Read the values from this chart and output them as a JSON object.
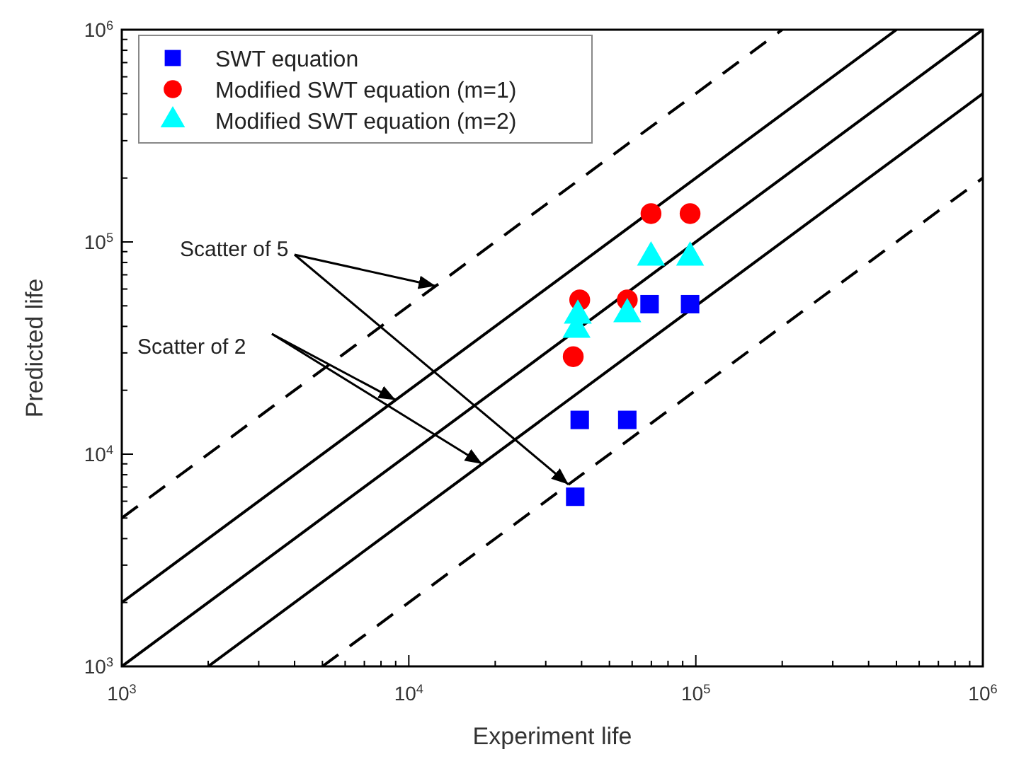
{
  "chart_data": {
    "type": "scatter",
    "xlabel": "Experiment life",
    "ylabel": "Predicted life",
    "log": "xy",
    "grid": false,
    "legend": "top left",
    "xlim": [
      1000,
      1000000
    ],
    "ylim": [
      1000,
      1000000
    ],
    "xticks": [
      {
        "value": 1000,
        "label": "10$^{3}$"
      },
      {
        "value": 2000,
        "label": null
      },
      {
        "value": 3000,
        "label": null
      },
      {
        "value": 4000,
        "label": null
      },
      {
        "value": 5000,
        "label": null
      },
      {
        "value": 6000,
        "label": null
      },
      {
        "value": 7000,
        "label": null
      },
      {
        "value": 8000,
        "label": null
      },
      {
        "value": 9000,
        "label": null
      },
      {
        "value": 10000,
        "label": "10$^{4}$"
      },
      {
        "value": 20000,
        "label": null
      },
      {
        "value": 30000,
        "label": null
      },
      {
        "value": 40000,
        "label": null
      },
      {
        "value": 50000,
        "label": null
      },
      {
        "value": 60000,
        "label": null
      },
      {
        "value": 70000,
        "label": null
      },
      {
        "value": 80000,
        "label": null
      },
      {
        "value": 90000,
        "label": null
      },
      {
        "value": 100000,
        "label": "10$^{5}$"
      },
      {
        "value": 200000,
        "label": null
      },
      {
        "value": 300000,
        "label": null
      },
      {
        "value": 400000,
        "label": null
      },
      {
        "value": 500000,
        "label": null
      },
      {
        "value": 600000,
        "label": null
      },
      {
        "value": 700000,
        "label": null
      },
      {
        "value": 800000,
        "label": null
      },
      {
        "value": 900000,
        "label": null
      },
      {
        "value": 1000000,
        "label": "10$^{6}$"
      }
    ],
    "yticks": [
      {
        "value": 1000,
        "label": "10$^{3}$"
      },
      {
        "value": 2000,
        "label": null
      },
      {
        "value": 3000,
        "label": null
      },
      {
        "value": 4000,
        "label": null
      },
      {
        "value": 5000,
        "label": null
      },
      {
        "value": 6000,
        "label": null
      },
      {
        "value": 7000,
        "label": null
      },
      {
        "value": 8000,
        "label": null
      },
      {
        "value": 9000,
        "label": null
      },
      {
        "value": 10000,
        "label": "10$^{4}$"
      },
      {
        "value": 20000,
        "label": null
      },
      {
        "value": 30000,
        "label": null
      },
      {
        "value": 40000,
        "label": null
      },
      {
        "value": 50000,
        "label": null
      },
      {
        "value": 60000,
        "label": null
      },
      {
        "value": 70000,
        "label": null
      },
      {
        "value": 80000,
        "label": null
      },
      {
        "value": 90000,
        "label": null
      },
      {
        "value": 100000,
        "label": "10$^{5}$"
      },
      {
        "value": 200000,
        "label": null
      },
      {
        "value": 300000,
        "label": null
      },
      {
        "value": 400000,
        "label": null
      },
      {
        "value": 500000,
        "label": null
      },
      {
        "value": 600000,
        "label": null
      },
      {
        "value": 700000,
        "label": null
      },
      {
        "value": 800000,
        "label": null
      },
      {
        "value": 900000,
        "label": null
      },
      {
        "value": 1000000,
        "label": "10$^{6}$"
      }
    ],
    "series": [
      {
        "name": "SWT equation",
        "marker": "square",
        "color": "#0000ff",
        "x": [
          38000,
          39400,
          57700,
          69000,
          95500
        ],
        "values": [
          6300,
          14500,
          14500,
          50900,
          50900
        ]
      },
      {
        "name": "Modified SWT equation (m=1)",
        "marker": "circle",
        "color": "#ff0000",
        "x": [
          37400,
          39400,
          57700,
          69800,
          95500
        ],
        "values": [
          28800,
          53300,
          53300,
          136000,
          136000
        ]
      },
      {
        "name": "Modified SWT equation (m=2)",
        "marker": "triangle",
        "color": "#00ffff",
        "x": [
          38400,
          38800,
          57700,
          69800,
          95500
        ],
        "values": [
          38600,
          45000,
          45700,
          84500,
          84500
        ]
      },
      {
        "type": "line",
        "color": "#000000",
        "line_style": "solid",
        "x": [
          1000,
          1000000
        ],
        "values": [
          1000,
          1000000
        ]
      },
      {
        "type": "line",
        "color": "#000000",
        "line_style": "solid",
        "x": [
          1000,
          500000
        ],
        "values": [
          2000,
          1000000
        ]
      },
      {
        "type": "line",
        "color": "#000000",
        "line_style": "solid",
        "x": [
          2000,
          1000000
        ],
        "values": [
          1000,
          500000
        ]
      },
      {
        "type": "line",
        "color": "#000000",
        "line_style": "dashed",
        "x": [
          1000,
          200000
        ],
        "values": [
          5000,
          1000000
        ]
      },
      {
        "type": "line",
        "color": "#000000",
        "line_style": "dashed",
        "x": [
          5000,
          1000000
        ],
        "values": [
          1000,
          200000
        ]
      }
    ],
    "annotations": [
      {
        "text": "Scatter of 5",
        "x": 12400,
        "y": 62000
      },
      {
        "text": "Scatter of 2",
        "x": 9000,
        "y": 18000
      }
    ]
  }
}
